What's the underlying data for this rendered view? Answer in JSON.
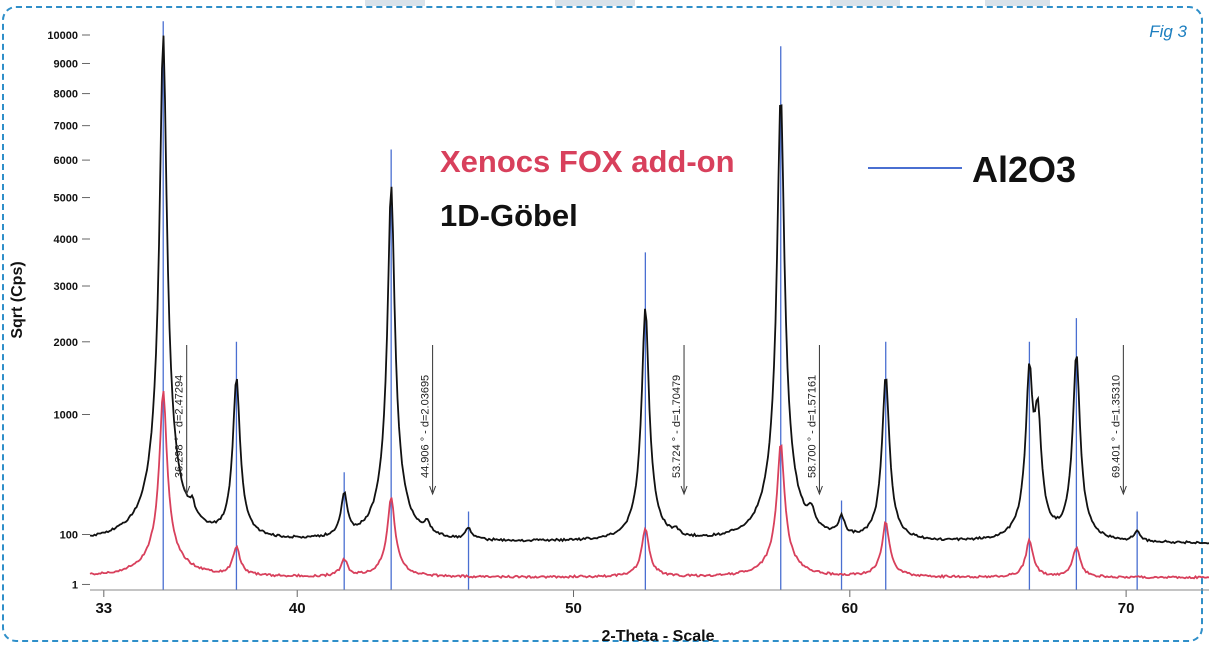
{
  "figure": {
    "label": "Fig 3"
  },
  "chart_data": {
    "type": "line",
    "xlabel": "2-Theta - Scale",
    "ylabel": "Sqrt (Cps)",
    "xlim": [
      32.5,
      73
    ],
    "ylim": [
      0,
      10000
    ],
    "yscale": "sqrt",
    "x_ticks": [
      {
        "value": 33,
        "label": "33"
      },
      {
        "value": 40,
        "label": "40"
      },
      {
        "value": 50,
        "label": "50"
      },
      {
        "value": 60,
        "label": "60"
      },
      {
        "value": 70,
        "label": "70"
      }
    ],
    "y_ticks": [
      {
        "value": 1,
        "label": "1"
      },
      {
        "value": 100,
        "label": "100"
      },
      {
        "value": 1000,
        "label": "1000"
      },
      {
        "value": 2000,
        "label": "2000"
      },
      {
        "value": 3000,
        "label": "3000"
      },
      {
        "value": 4000,
        "label": "4000"
      },
      {
        "value": 5000,
        "label": "5000"
      },
      {
        "value": 6000,
        "label": "6000"
      },
      {
        "value": 7000,
        "label": "7000"
      },
      {
        "value": 8000,
        "label": "8000"
      },
      {
        "value": 9000,
        "label": "9000"
      },
      {
        "value": 10000,
        "label": "10000"
      }
    ],
    "legend": [
      {
        "name": "Xenocs FOX add-on",
        "color": "#d8405c"
      },
      {
        "name": "1D-Göbel",
        "color": "#111111"
      },
      {
        "name": "Al2O3",
        "color": "#4a6fd1"
      }
    ],
    "series": [
      {
        "name": "1D-Göbel",
        "color": "#111111",
        "baseline": 70,
        "peaks": [
          {
            "x": 35.15,
            "y": 10000
          },
          {
            "x": 36.2,
            "y": 140
          },
          {
            "x": 37.8,
            "y": 1450
          },
          {
            "x": 41.7,
            "y": 280
          },
          {
            "x": 43.4,
            "y": 5300
          },
          {
            "x": 44.7,
            "y": 110
          },
          {
            "x": 46.2,
            "y": 110
          },
          {
            "x": 52.6,
            "y": 2600
          },
          {
            "x": 53.7,
            "y": 90
          },
          {
            "x": 57.5,
            "y": 8000
          },
          {
            "x": 58.6,
            "y": 150
          },
          {
            "x": 59.7,
            "y": 150
          },
          {
            "x": 61.3,
            "y": 1500
          },
          {
            "x": 66.5,
            "y": 1550
          },
          {
            "x": 66.8,
            "y": 1000
          },
          {
            "x": 68.2,
            "y": 1800
          },
          {
            "x": 70.4,
            "y": 110
          }
        ]
      },
      {
        "name": "Xenocs FOX add-on",
        "color": "#d8405c",
        "baseline": 5,
        "peaks": [
          {
            "x": 35.15,
            "y": 1300
          },
          {
            "x": 37.8,
            "y": 60
          },
          {
            "x": 41.7,
            "y": 30
          },
          {
            "x": 43.4,
            "y": 280
          },
          {
            "x": 52.6,
            "y": 120
          },
          {
            "x": 57.5,
            "y": 700
          },
          {
            "x": 61.3,
            "y": 150
          },
          {
            "x": 66.5,
            "y": 80
          },
          {
            "x": 68.2,
            "y": 60
          }
        ]
      }
    ],
    "reference_lines": {
      "name": "Al2O3",
      "color": "#4a6fd1",
      "lines": [
        {
          "x": 35.15,
          "y": 10500
        },
        {
          "x": 37.8,
          "y": 2000
        },
        {
          "x": 41.7,
          "y": 450
        },
        {
          "x": 43.4,
          "y": 6300
        },
        {
          "x": 46.2,
          "y": 200
        },
        {
          "x": 52.6,
          "y": 3700
        },
        {
          "x": 57.5,
          "y": 9600
        },
        {
          "x": 59.7,
          "y": 260
        },
        {
          "x": 61.3,
          "y": 2000
        },
        {
          "x": 66.5,
          "y": 2000
        },
        {
          "x": 68.2,
          "y": 2400
        },
        {
          "x": 70.4,
          "y": 200
        }
      ]
    },
    "annotations": [
      {
        "x": 36.0,
        "text": "36.298 ° - d=2.47294"
      },
      {
        "x": 44.9,
        "text": "44.906 ° - d=2.03695"
      },
      {
        "x": 54.0,
        "text": "53.724 ° - d=1.70479"
      },
      {
        "x": 58.9,
        "text": "58.700 ° - d=1.57161"
      },
      {
        "x": 69.9,
        "text": "69.401 ° - d=1.35310"
      }
    ]
  }
}
